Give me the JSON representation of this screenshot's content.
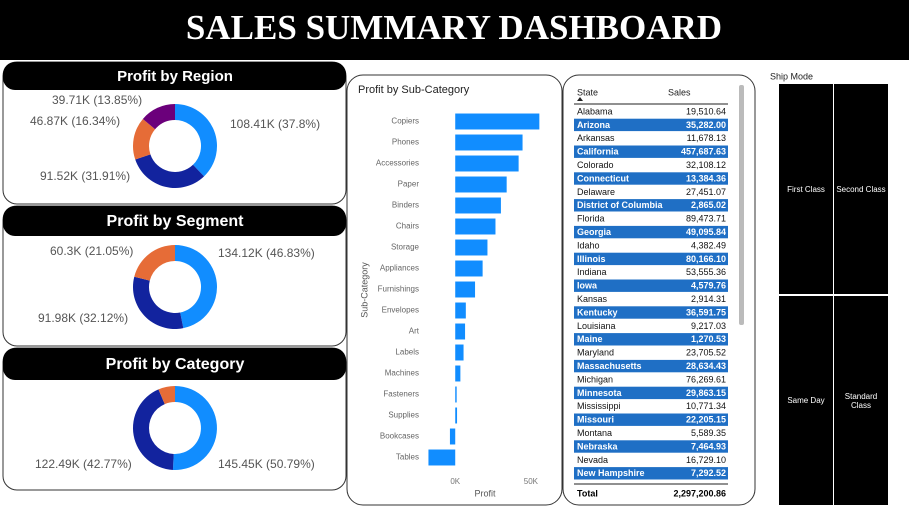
{
  "header": {
    "title": "SALES SUMMARY DASHBOARD"
  },
  "chart_data": [
    {
      "type": "donut",
      "title": "Profit by Region",
      "values": [
        108410,
        91520,
        46870,
        39710
      ],
      "value_labels": [
        "108.41K (37.8%)",
        "91.52K (31.91%)",
        "46.87K (16.34%)",
        "39.71K (13.85%)"
      ],
      "colors": [
        "#118dff",
        "#12239e",
        "#e66c37",
        "#6b007b"
      ]
    },
    {
      "type": "donut",
      "title": "Profit by Segment",
      "values": [
        134120,
        91980,
        60300
      ],
      "value_labels": [
        "134.12K (46.83%)",
        "91.98K (32.12%)",
        "60.3K (21.05%)"
      ],
      "colors": [
        "#118dff",
        "#12239e",
        "#e66c37"
      ]
    },
    {
      "type": "donut",
      "title": "Profit by Category",
      "values": [
        145450,
        122490,
        18450
      ],
      "value_labels": [
        "145.45K (50.79%)",
        "122.49K (42.77%)",
        null
      ],
      "colors": [
        "#118dff",
        "#12239e",
        "#e66c37"
      ]
    },
    {
      "type": "bar",
      "title": "Profit by Sub-Category",
      "x_label": "Profit",
      "y_label": "Sub-Category",
      "categories": [
        "Copiers",
        "Phones",
        "Accessories",
        "Paper",
        "Binders",
        "Chairs",
        "Storage",
        "Appliances",
        "Furnishings",
        "Envelopes",
        "Art",
        "Labels",
        "Machines",
        "Fasteners",
        "Supplies",
        "Bookcases",
        "Tables"
      ],
      "values": [
        55600,
        44500,
        41900,
        34000,
        30200,
        26600,
        21300,
        18100,
        13100,
        7000,
        6500,
        5500,
        3400,
        950,
        1200,
        -3500,
        -17700
      ],
      "color": "#118dff",
      "xlim": [
        -18000,
        60000
      ],
      "xticks": [
        {
          "value": 0,
          "label": "0K"
        },
        {
          "value": 50000,
          "label": "50K"
        }
      ]
    }
  ],
  "table": {
    "columns": [
      "State",
      "Sales"
    ],
    "rows": [
      [
        "Alabama",
        "19,510.64"
      ],
      [
        "Arizona",
        "35,282.00"
      ],
      [
        "Arkansas",
        "11,678.13"
      ],
      [
        "California",
        "457,687.63"
      ],
      [
        "Colorado",
        "32,108.12"
      ],
      [
        "Connecticut",
        "13,384.36"
      ],
      [
        "Delaware",
        "27,451.07"
      ],
      [
        "District of Columbia",
        "2,865.02"
      ],
      [
        "Florida",
        "89,473.71"
      ],
      [
        "Georgia",
        "49,095.84"
      ],
      [
        "Idaho",
        "4,382.49"
      ],
      [
        "Illinois",
        "80,166.10"
      ],
      [
        "Indiana",
        "53,555.36"
      ],
      [
        "Iowa",
        "4,579.76"
      ],
      [
        "Kansas",
        "2,914.31"
      ],
      [
        "Kentucky",
        "36,591.75"
      ],
      [
        "Louisiana",
        "9,217.03"
      ],
      [
        "Maine",
        "1,270.53"
      ],
      [
        "Maryland",
        "23,705.52"
      ],
      [
        "Massachusetts",
        "28,634.43"
      ],
      [
        "Michigan",
        "76,269.61"
      ],
      [
        "Minnesota",
        "29,863.15"
      ],
      [
        "Mississippi",
        "10,771.34"
      ],
      [
        "Missouri",
        "22,205.15"
      ],
      [
        "Montana",
        "5,589.35"
      ],
      [
        "Nebraska",
        "7,464.93"
      ],
      [
        "Nevada",
        "16,729.10"
      ],
      [
        "New Hampshire",
        "7,292.52"
      ]
    ],
    "total": [
      "Total",
      "2,297,200.86"
    ]
  },
  "slicer": {
    "title": "Ship Mode",
    "options": [
      "First Class",
      "Second Class",
      "Same Day",
      "Standard Class"
    ]
  }
}
